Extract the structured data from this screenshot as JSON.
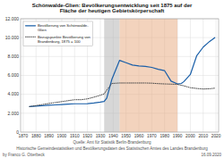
{
  "chart_data": {
    "type": "line",
    "title": "Schönwalde-Glien: Bevölkerungsentwicklung seit 1875 auf der\nFläche der heutigen Gebietskörperschaft",
    "xlim": [
      1868,
      2022
    ],
    "xticks": [
      1870,
      1880,
      1890,
      1900,
      1910,
      1920,
      1930,
      1940,
      1950,
      1960,
      1970,
      1980,
      1990,
      2000,
      2010,
      2020
    ],
    "ylim": [
      0,
      12000
    ],
    "yticks": [
      0,
      {
        "value": 2000,
        "label": "2.000"
      },
      {
        "value": 4000,
        "label": "4.000"
      },
      {
        "value": 6000,
        "label": "6.000"
      },
      {
        "value": 8000,
        "label": "8.000"
      },
      {
        "value": 10000,
        "label": "10.000"
      },
      {
        "value": 12000,
        "label": "12.000"
      }
    ],
    "grid": true,
    "legend": "upper left",
    "series": [
      {
        "name": "Bevölkerung von Schönwalde-\nGlien",
        "color": "#1a5fa8",
        "line_style": "solid",
        "x": [
          1875,
          1880,
          1885,
          1890,
          1895,
          1900,
          1905,
          1910,
          1915,
          1920,
          1925,
          1930,
          1933,
          1935,
          1939,
          1945,
          1950,
          1955,
          1960,
          1965,
          1970,
          1975,
          1980,
          1985,
          1990,
          1993,
          1995,
          2000,
          2005,
          2010,
          2015,
          2019
        ],
        "values": [
          2700,
          2760,
          2800,
          2840,
          2880,
          2920,
          2970,
          3000,
          3000,
          3020,
          3080,
          3180,
          3250,
          3600,
          5600,
          7600,
          7350,
          7100,
          7000,
          6950,
          6850,
          6650,
          6500,
          5400,
          5100,
          5150,
          5350,
          6100,
          8100,
          9000,
          9600,
          10000
        ]
      },
      {
        "name": "Bezugspunkte Bevölkerung von\nBrandenburg, 1875 = 100",
        "color": "#444444",
        "line_style": "dotted",
        "x": [
          1875,
          1880,
          1885,
          1890,
          1895,
          1900,
          1905,
          1910,
          1915,
          1920,
          1925,
          1930,
          1933,
          1935,
          1939,
          1945,
          1950,
          1955,
          1960,
          1965,
          1970,
          1975,
          1980,
          1985,
          1990,
          1995,
          2000,
          2005,
          2010,
          2015,
          2019
        ],
        "values": [
          2700,
          2810,
          2920,
          3030,
          3130,
          3230,
          3330,
          3430,
          3430,
          3520,
          3700,
          3900,
          4050,
          4450,
          5150,
          5200,
          5200,
          5200,
          5200,
          5200,
          5180,
          5130,
          5100,
          5080,
          5050,
          4900,
          4700,
          4620,
          4560,
          4590,
          4650
        ]
      }
    ],
    "bands": [
      {
        "start": 1933,
        "end": 1945,
        "color": "#b0b0b0"
      },
      {
        "start": 1945,
        "end": 1990,
        "color": "#e8a87c"
      }
    ],
    "annotations": [
      "Quelle: Amt für Statistik Berlin-Brandenburg",
      "Historische Gemeindestatistiken und Bevölkerungsdaten des Statistischen Amtes des Landes Brandenburg",
      "by Franco G. Otterbeck",
      "16.09.2020"
    ]
  }
}
